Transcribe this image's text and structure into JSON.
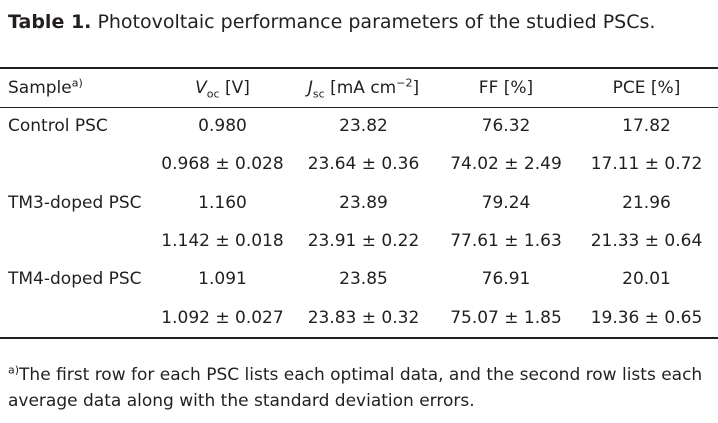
{
  "caption": {
    "label": "Table 1.",
    "text": "Photovoltaic performance parameters of the studied PSCs."
  },
  "headers": {
    "sample": "Sample",
    "sample_mark": "a)",
    "voc_main": "V",
    "voc_sub": "oc",
    "voc_unit": " [V]",
    "jsc_main": "J",
    "jsc_sub": "sc",
    "jsc_unit": " [mA cm",
    "jsc_sup": "−2",
    "jsc_close": "]",
    "ff": "FF [%]",
    "pce": "PCE [%]"
  },
  "rows": [
    {
      "sample": "Control PSC",
      "voc": "0.980",
      "jsc": "23.82",
      "ff": "76.32",
      "pce": "17.82"
    },
    {
      "sample": "",
      "voc": "0.968 ± 0.028",
      "jsc": "23.64 ± 0.36",
      "ff": "74.02 ± 2.49",
      "pce": "17.11 ± 0.72"
    },
    {
      "sample": "TM3-doped PSC",
      "voc": "1.160",
      "jsc": "23.89",
      "ff": "79.24",
      "pce": "21.96"
    },
    {
      "sample": "",
      "voc": "1.142 ± 0.018",
      "jsc": "23.91 ± 0.22",
      "ff": "77.61 ± 1.63",
      "pce": "21.33 ± 0.64"
    },
    {
      "sample": "TM4-doped PSC",
      "voc": "1.091",
      "jsc": "23.85",
      "ff": "76.91",
      "pce": "20.01"
    },
    {
      "sample": "",
      "voc": "1.092 ± 0.027",
      "jsc": "23.83 ± 0.32",
      "ff": "75.07 ± 1.85",
      "pce": "19.36 ± 0.65"
    }
  ],
  "footnote": {
    "mark": "a)",
    "text": "The first row for each PSC lists each optimal data, and the second row lists each average data along with the standard deviation errors."
  }
}
